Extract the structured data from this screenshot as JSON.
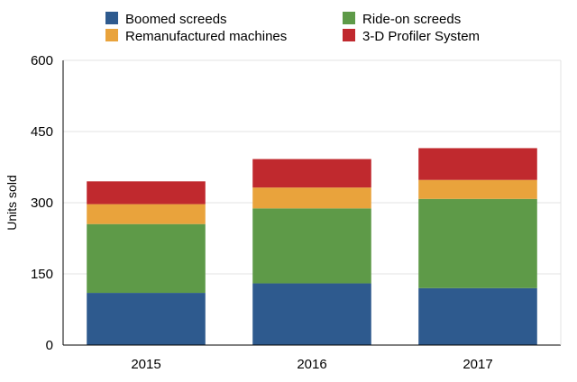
{
  "chart_data": {
    "type": "bar",
    "stacked": true,
    "categories": [
      "2015",
      "2016",
      "2017"
    ],
    "series": [
      {
        "name": "Boomed screeds",
        "color": "#2e5a8e",
        "values": [
          110,
          130,
          120
        ]
      },
      {
        "name": "Ride-on screeds",
        "color": "#5e9a48",
        "values": [
          145,
          158,
          188
        ]
      },
      {
        "name": "Remanufactured machines",
        "color": "#e9a33c",
        "values": [
          42,
          44,
          40
        ]
      },
      {
        "name": "3-D Profiler System",
        "color": "#c0292e",
        "values": [
          48,
          60,
          67
        ]
      }
    ],
    "title": "",
    "xlabel": "",
    "ylabel": "Units sold",
    "ylim": [
      0,
      600
    ],
    "yticks": [
      0,
      150,
      300,
      450,
      600
    ],
    "grid": true,
    "legend_position": "top"
  }
}
